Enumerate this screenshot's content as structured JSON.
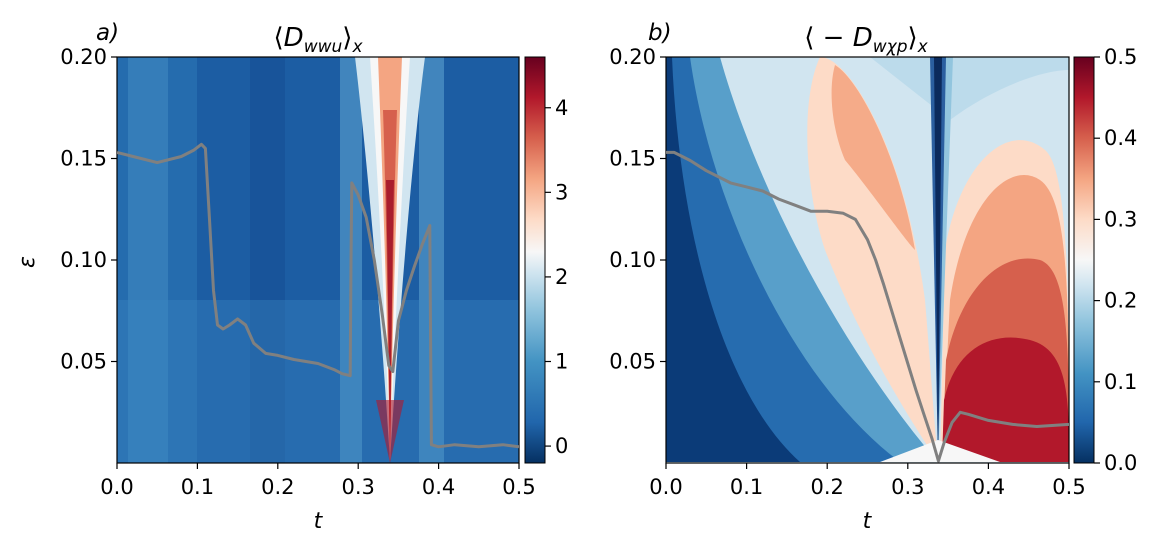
{
  "chart_data": [
    {
      "type": "heatmap",
      "panel_label": "a)",
      "title_pre": "⟨",
      "title_var": "D",
      "title_sub": "wwu",
      "title_post": "⟩",
      "title_post_sub": "x",
      "xlabel": "t",
      "ylabel": "ε",
      "xlim": [
        0,
        0.5
      ],
      "ylim": [
        0,
        0.2
      ],
      "xticks": [
        "0.0",
        "0.1",
        "0.2",
        "0.3",
        "0.4",
        "0.5"
      ],
      "yticks": [
        "0.05",
        "0.10",
        "0.15",
        "0.20"
      ],
      "colorbar": {
        "min": -0.2,
        "max": 4.6,
        "ticks": [
          "0",
          "1",
          "2",
          "3",
          "4"
        ],
        "colormap": "RdBu_r"
      },
      "line_color": "#808080",
      "line": {
        "x": [
          0.0,
          0.02,
          0.05,
          0.08,
          0.095,
          0.105,
          0.11,
          0.115,
          0.12,
          0.125,
          0.132,
          0.14,
          0.15,
          0.16,
          0.17,
          0.185,
          0.2,
          0.22,
          0.25,
          0.27,
          0.28,
          0.29,
          0.291,
          0.292,
          0.3,
          0.31,
          0.32,
          0.33,
          0.338,
          0.343,
          0.35,
          0.36,
          0.37,
          0.38,
          0.389,
          0.39,
          0.391,
          0.4,
          0.42,
          0.45,
          0.48,
          0.5
        ],
        "y": [
          0.153,
          0.151,
          0.148,
          0.151,
          0.154,
          0.157,
          0.155,
          0.12,
          0.085,
          0.068,
          0.066,
          0.068,
          0.071,
          0.068,
          0.059,
          0.054,
          0.053,
          0.051,
          0.049,
          0.046,
          0.044,
          0.043,
          0.1,
          0.138,
          0.132,
          0.121,
          0.1,
          0.073,
          0.048,
          0.045,
          0.07,
          0.085,
          0.097,
          0.108,
          0.117,
          0.06,
          0.009,
          0.008,
          0.009,
          0.008,
          0.009,
          0.008
        ]
      }
    },
    {
      "type": "heatmap",
      "panel_label": "b)",
      "title_pre": "⟨ − ",
      "title_var": "D",
      "title_sub": "wχp",
      "title_post": "⟩",
      "title_post_sub": "x",
      "xlabel": "t",
      "ylabel": "",
      "xlim": [
        0,
        0.5
      ],
      "ylim": [
        0,
        0.2
      ],
      "xticks": [
        "0.0",
        "0.1",
        "0.2",
        "0.3",
        "0.4",
        "0.5"
      ],
      "yticks": [
        "0.05",
        "0.10",
        "0.15",
        "0.20"
      ],
      "colorbar": {
        "min": 0.0,
        "max": 0.5,
        "ticks": [
          "0.0",
          "0.1",
          "0.2",
          "0.3",
          "0.4",
          "0.5"
        ],
        "colormap": "RdBu_r"
      },
      "line_color": "#808080",
      "line": {
        "x": [
          0.0,
          0.01,
          0.03,
          0.05,
          0.08,
          0.1,
          0.12,
          0.14,
          0.16,
          0.18,
          0.2,
          0.22,
          0.235,
          0.25,
          0.26,
          0.27,
          0.28,
          0.29,
          0.3,
          0.31,
          0.32,
          0.33,
          0.338,
          0.345,
          0.355,
          0.365,
          0.375,
          0.4,
          0.43,
          0.46,
          0.5
        ],
        "y": [
          0.153,
          0.153,
          0.149,
          0.144,
          0.138,
          0.136,
          0.134,
          0.13,
          0.127,
          0.124,
          0.124,
          0.123,
          0.12,
          0.11,
          0.1,
          0.088,
          0.075,
          0.062,
          0.049,
          0.036,
          0.024,
          0.012,
          0.001,
          0.01,
          0.02,
          0.025,
          0.024,
          0.021,
          0.019,
          0.018,
          0.019
        ]
      }
    }
  ]
}
